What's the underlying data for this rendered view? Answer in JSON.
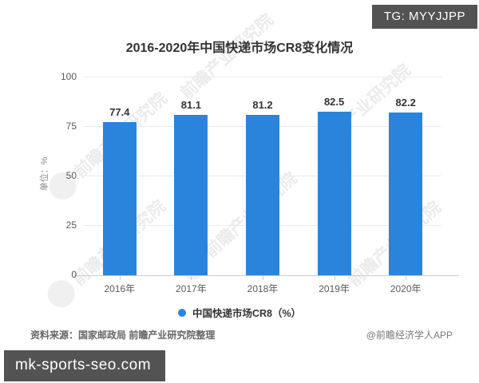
{
  "badges": {
    "tg": {
      "label": "TG: MYYJJPP"
    },
    "site": {
      "label": "mk-sports-seo.com"
    }
  },
  "chart_data": {
    "type": "bar",
    "title": "2016-2020年中国快递市场CR8变化情况",
    "categories": [
      "2016年",
      "2017年",
      "2018年",
      "2019年",
      "2020年"
    ],
    "values": [
      77.4,
      81.1,
      81.2,
      82.5,
      82.2
    ],
    "series": [
      {
        "name": "中国快递市场CR8（%）",
        "values": [
          77.4,
          81.1,
          81.2,
          82.5,
          82.2
        ]
      }
    ],
    "ylabel": "单位：%",
    "yticks": [
      0,
      25,
      50,
      75,
      100
    ],
    "ylim": [
      0,
      100
    ],
    "bar_color": "#2b84dc",
    "grid": true,
    "legend_position": "bottom"
  },
  "footer": {
    "source": "资料来源：国家邮政局 前瞻产业研究院整理",
    "credit": "@前瞻经济学人APP"
  },
  "watermark": {
    "logo_text": "前瞻产业研究院"
  }
}
